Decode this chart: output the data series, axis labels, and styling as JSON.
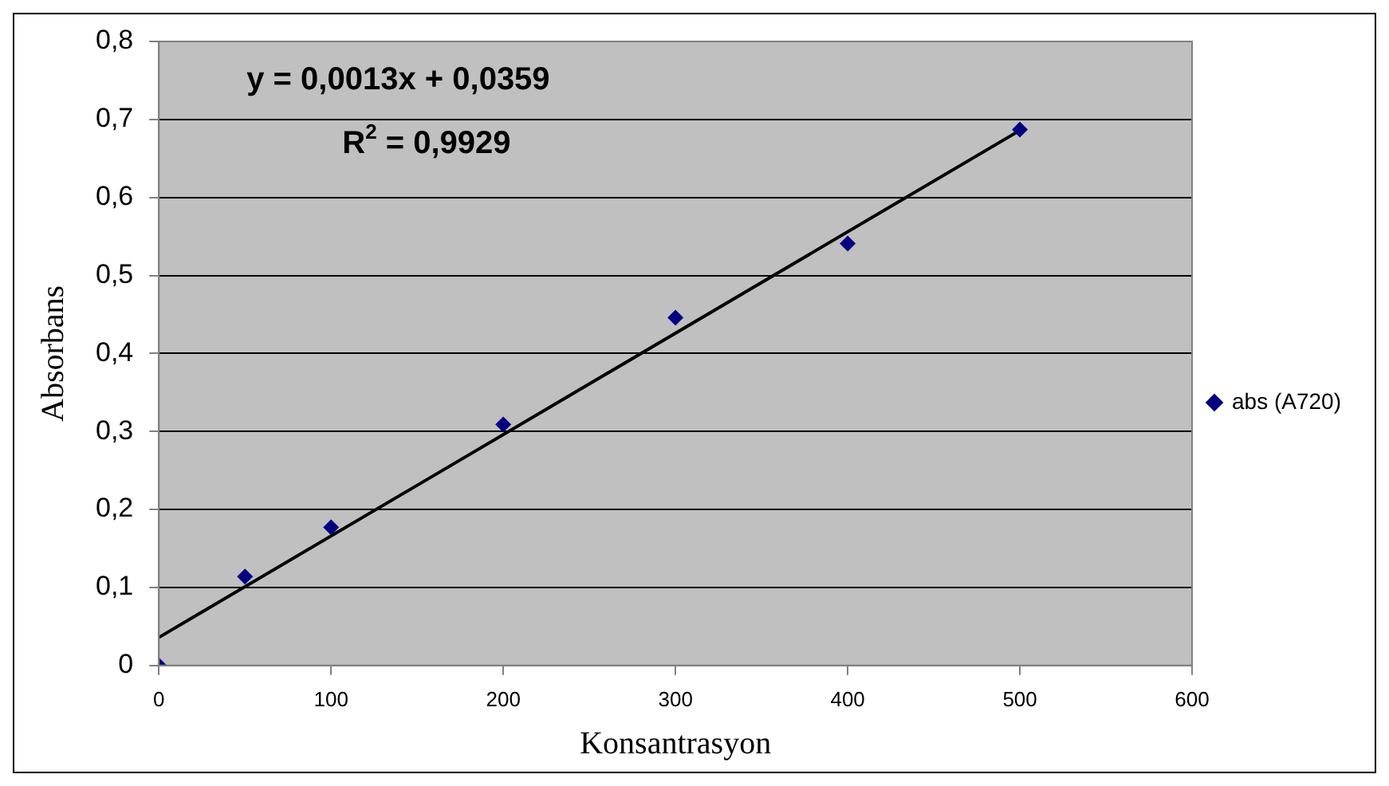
{
  "chart_data": {
    "type": "scatter",
    "xlabel": "Konsantrasyon",
    "ylabel": "Absorbans",
    "x": [
      0,
      50,
      100,
      200,
      300,
      400,
      500
    ],
    "series": [
      {
        "name": "abs (A720)",
        "color": "#000080",
        "values": [
          0,
          0.114,
          0.177,
          0.309,
          0.446,
          0.541,
          0.687
        ],
        "marker": "diamond"
      },
      {
        "type": "line",
        "color": "#000000",
        "x": [
          0,
          500
        ],
        "values": [
          0.036,
          0.686
        ],
        "marker": "none"
      }
    ],
    "xlim": [
      0,
      600
    ],
    "xticks": [
      0,
      100,
      200,
      300,
      400,
      500,
      600
    ],
    "ylim": [
      0,
      0.8
    ],
    "yticks": [
      0,
      {
        "value": 0.1,
        "label": "0,1"
      },
      {
        "value": 0.2,
        "label": "0,2"
      },
      {
        "value": 0.3,
        "label": "0,3"
      },
      {
        "value": 0.4,
        "label": "0,4"
      },
      {
        "value": 0.5,
        "label": "0,5"
      },
      {
        "value": 0.6,
        "label": "0,6"
      },
      {
        "value": 0.7,
        "label": "0,7"
      },
      {
        "value": 0.8,
        "label": "0,8"
      }
    ],
    "grid": "y",
    "legend": "right",
    "annotations": [
      "y = 0,0013x + 0,0359",
      "R$^{2}$ = 0,9929"
    ]
  }
}
